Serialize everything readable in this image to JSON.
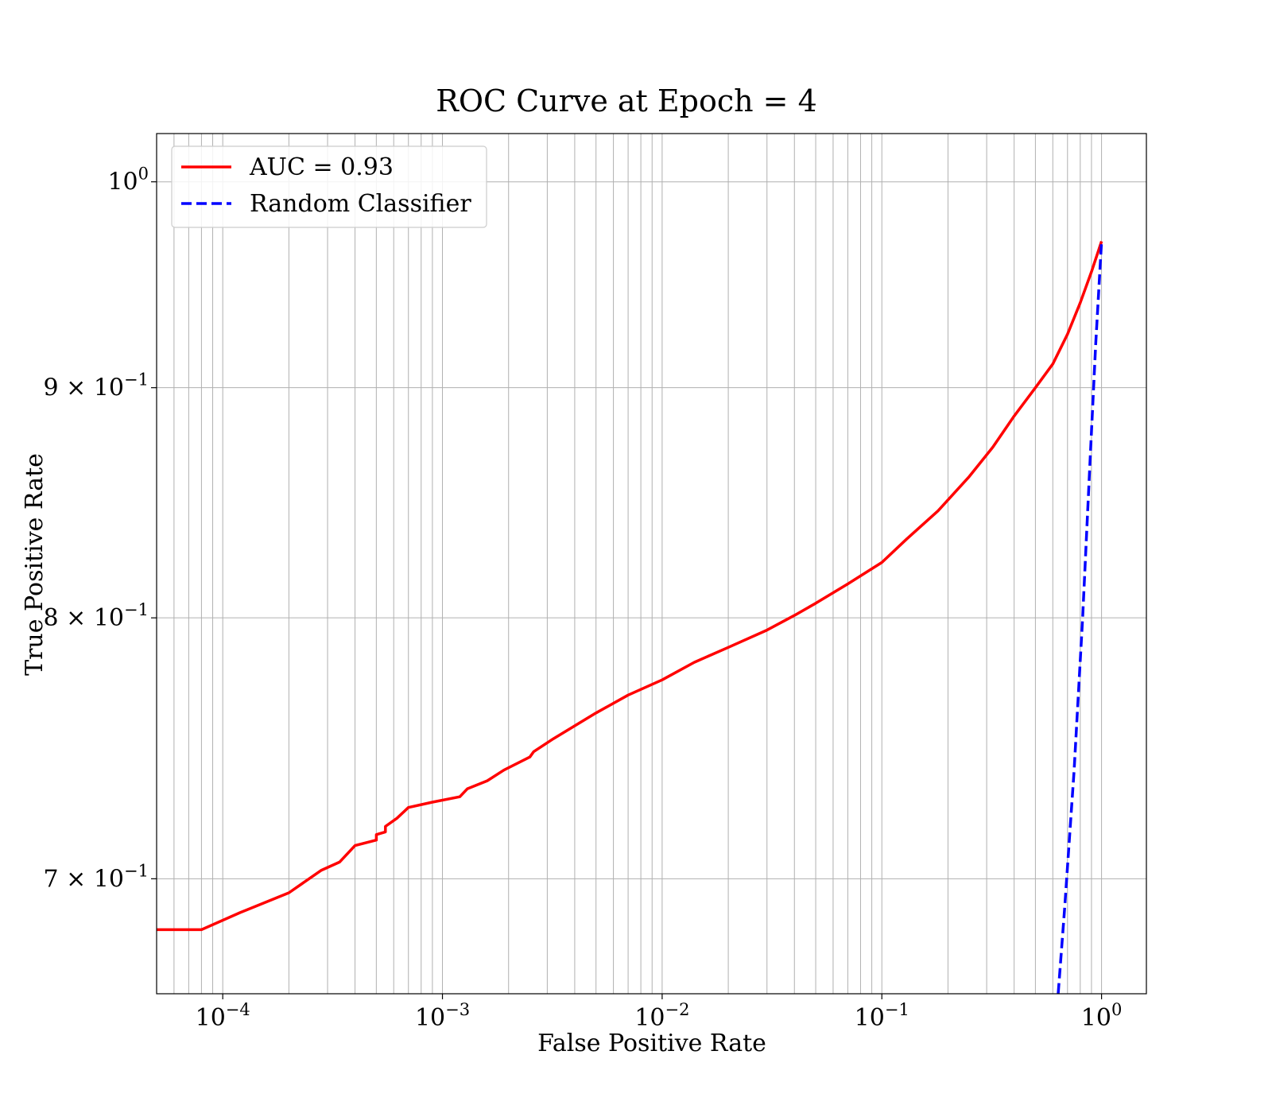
{
  "chart_data": {
    "type": "line",
    "title": "ROC Curve at Epoch = 4",
    "xlabel": "False Positive Rate",
    "ylabel": "True Positive Rate",
    "xscale": "log",
    "yscale": "log",
    "xlim": [
      5e-05,
      1.6
    ],
    "ylim": [
      0.66,
      1.025
    ],
    "grid": true,
    "grid_minor": true,
    "legend_position": "upper-left",
    "x_ticks": [
      {
        "value": 0.0001,
        "base": "10",
        "exp": "−4"
      },
      {
        "value": 0.001,
        "base": "10",
        "exp": "−3"
      },
      {
        "value": 0.01,
        "base": "10",
        "exp": "−2"
      },
      {
        "value": 0.1,
        "base": "10",
        "exp": "−1"
      },
      {
        "value": 1,
        "base": "10",
        "exp": "0"
      }
    ],
    "y_ticks": [
      {
        "value": 1.0,
        "mant": "",
        "base": "10",
        "exp": "0"
      },
      {
        "value": 0.9,
        "mant": "9 × ",
        "base": "10",
        "exp": "−1"
      },
      {
        "value": 0.8,
        "mant": "8 × ",
        "base": "10",
        "exp": "−1"
      },
      {
        "value": 0.7,
        "mant": "7 × ",
        "base": "10",
        "exp": "−1"
      }
    ],
    "series": [
      {
        "name": "AUC = 0.93",
        "color": "#ff0000",
        "style": "solid",
        "x": [
          5e-05,
          8e-05,
          0.00012,
          0.0002,
          0.00028,
          0.00034,
          0.0004,
          0.0005,
          0.0005,
          0.00055,
          0.00055,
          0.00062,
          0.0007,
          0.0009,
          0.0012,
          0.0013,
          0.0016,
          0.0019,
          0.0025,
          0.0026,
          0.0032,
          0.004,
          0.005,
          0.007,
          0.01,
          0.014,
          0.02,
          0.03,
          0.04,
          0.05,
          0.07,
          0.1,
          0.13,
          0.18,
          0.25,
          0.32,
          0.4,
          0.5,
          0.6,
          0.7,
          0.8,
          0.9,
          1.0
        ],
        "y": [
          0.682,
          0.682,
          0.688,
          0.695,
          0.703,
          0.706,
          0.712,
          0.714,
          0.716,
          0.717,
          0.719,
          0.722,
          0.726,
          0.728,
          0.73,
          0.733,
          0.736,
          0.74,
          0.745,
          0.747,
          0.752,
          0.757,
          0.762,
          0.769,
          0.775,
          0.782,
          0.788,
          0.795,
          0.801,
          0.806,
          0.814,
          0.823,
          0.833,
          0.845,
          0.86,
          0.873,
          0.887,
          0.9,
          0.911,
          0.925,
          0.94,
          0.955,
          0.97
        ]
      },
      {
        "name": "Random Classifier",
        "color": "#0000ff",
        "style": "dashed",
        "x": [
          0.62,
          0.68,
          0.75,
          0.82,
          0.88,
          0.94,
          1.0
        ],
        "y": [
          0.65,
          0.69,
          0.74,
          0.8,
          0.86,
          0.92,
          0.97
        ]
      }
    ]
  }
}
